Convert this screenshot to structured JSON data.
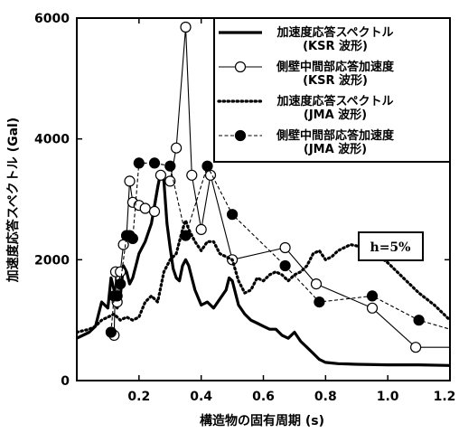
{
  "chart_data": {
    "type": "line",
    "xlabel": "構造物の固有周期 (s)",
    "ylabel": "加速度応答スペクトル (Gal)",
    "xlim": [
      0,
      1.2
    ],
    "ylim": [
      0,
      6000
    ],
    "x_ticks": [
      0.2,
      0.4,
      0.6,
      0.8,
      1.0,
      1.2
    ],
    "x_tick_labels": [
      "0.2",
      "0.4",
      "0.6",
      "0.8",
      "1.0",
      "1.2"
    ],
    "y_ticks": [
      0,
      2000,
      4000,
      6000
    ],
    "y_tick_labels": [
      "0",
      "2000",
      "4000",
      "6000"
    ],
    "grid": false,
    "legend_position": "top-right",
    "annotation": "h=5%",
    "series": [
      {
        "name": "加速度応答スペクトル\n(KSR 波形)",
        "style": "solid",
        "color": "#000000",
        "marker": "none",
        "x": [
          0,
          0.04,
          0.06,
          0.08,
          0.1,
          0.11,
          0.12,
          0.13,
          0.14,
          0.15,
          0.16,
          0.17,
          0.18,
          0.19,
          0.2,
          0.22,
          0.24,
          0.26,
          0.27,
          0.28,
          0.29,
          0.3,
          0.31,
          0.32,
          0.33,
          0.34,
          0.35,
          0.36,
          0.37,
          0.38,
          0.4,
          0.42,
          0.44,
          0.46,
          0.48,
          0.49,
          0.5,
          0.52,
          0.54,
          0.56,
          0.58,
          0.6,
          0.62,
          0.64,
          0.66,
          0.68,
          0.7,
          0.72,
          0.74,
          0.76,
          0.78,
          0.8,
          0.84,
          0.9,
          1.0,
          1.1,
          1.2
        ],
        "y": [
          700,
          800,
          900,
          1300,
          1200,
          1700,
          1500,
          1200,
          1400,
          1900,
          1800,
          1600,
          1700,
          1900,
          2100,
          2300,
          2600,
          3200,
          3450,
          3300,
          2600,
          2200,
          1850,
          1700,
          1650,
          1900,
          2000,
          1900,
          1700,
          1500,
          1250,
          1300,
          1200,
          1350,
          1500,
          1700,
          1650,
          1250,
          1100,
          1000,
          950,
          900,
          850,
          850,
          750,
          700,
          800,
          650,
          550,
          450,
          350,
          300,
          280,
          270,
          260,
          260,
          250
        ]
      },
      {
        "name": "側壁中間部応答加速度\n(KSR 波形)",
        "style": "solid-thin",
        "color": "#000000",
        "marker": "open-circle",
        "x": [
          0.12,
          0.125,
          0.13,
          0.14,
          0.15,
          0.16,
          0.17,
          0.18,
          0.2,
          0.22,
          0.25,
          0.27,
          0.3,
          0.32,
          0.35,
          0.37,
          0.4,
          0.43,
          0.5,
          0.67,
          0.77,
          0.95,
          1.09,
          1.2
        ],
        "y": [
          750,
          1800,
          1300,
          1800,
          2250,
          2400,
          3300,
          2950,
          2900,
          2850,
          2800,
          3400,
          3300,
          3850,
          5850,
          3400,
          2500,
          3400,
          2000,
          2200,
          1600,
          1200,
          550,
          550
        ]
      },
      {
        "name": "加速度応答スペクトル\n(JMA 波形)",
        "style": "dotted",
        "color": "#000000",
        "marker": "none",
        "x": [
          0,
          0.04,
          0.06,
          0.08,
          0.1,
          0.12,
          0.14,
          0.16,
          0.18,
          0.2,
          0.22,
          0.24,
          0.26,
          0.28,
          0.3,
          0.32,
          0.34,
          0.35,
          0.36,
          0.38,
          0.4,
          0.42,
          0.44,
          0.46,
          0.48,
          0.5,
          0.52,
          0.54,
          0.56,
          0.58,
          0.6,
          0.62,
          0.64,
          0.66,
          0.68,
          0.7,
          0.72,
          0.74,
          0.76,
          0.78,
          0.8,
          0.82,
          0.84,
          0.86,
          0.88,
          0.9,
          0.92,
          0.94,
          0.96,
          1.0,
          1.05,
          1.1,
          1.15,
          1.2
        ],
        "y": [
          800,
          850,
          900,
          1000,
          1050,
          1100,
          1000,
          1050,
          1000,
          1050,
          1300,
          1400,
          1300,
          1800,
          2000,
          2100,
          2500,
          2650,
          2500,
          2300,
          2150,
          2300,
          2300,
          2100,
          2050,
          2000,
          1650,
          1450,
          1500,
          1700,
          1650,
          1750,
          1800,
          1750,
          1650,
          1750,
          1800,
          1900,
          2100,
          2150,
          2000,
          2050,
          2150,
          2200,
          2250,
          2230,
          2200,
          2150,
          2100,
          1950,
          1700,
          1450,
          1250,
          1000
        ]
      },
      {
        "name": "側壁中間部応答加速度\n(JMA 波形)",
        "style": "dashed",
        "color": "#000000",
        "marker": "filled-circle",
        "x": [
          0.11,
          0.12,
          0.13,
          0.14,
          0.16,
          0.17,
          0.18,
          0.2,
          0.25,
          0.3,
          0.35,
          0.42,
          0.5,
          0.67,
          0.78,
          0.95,
          1.1,
          1.2
        ],
        "y": [
          800,
          1400,
          1400,
          1600,
          2400,
          2400,
          2350,
          3600,
          3600,
          3550,
          2400,
          3550,
          2750,
          1900,
          1300,
          1400,
          1000,
          850
        ]
      }
    ]
  }
}
